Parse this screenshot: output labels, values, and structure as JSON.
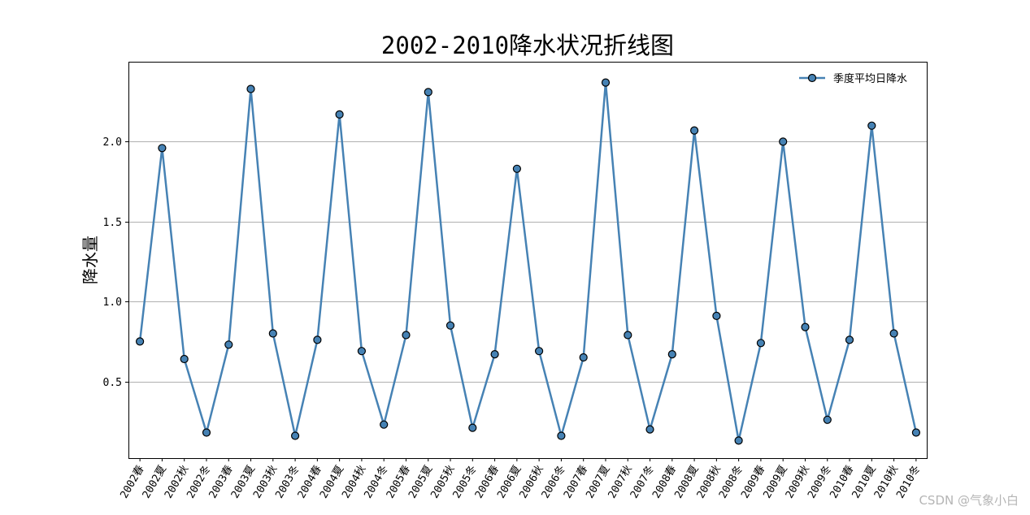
{
  "watermark": "CSDN @气象小白",
  "chart_data": {
    "type": "line",
    "title": "2002-2010降水状况折线图",
    "xlabel": "",
    "ylabel": "降水量",
    "categories": [
      "2002春",
      "2002夏",
      "2002秋",
      "2002冬",
      "2003春",
      "2003夏",
      "2003秋",
      "2003冬",
      "2004春",
      "2004夏",
      "2004秋",
      "2004冬",
      "2005春",
      "2005夏",
      "2005秋",
      "2005冬",
      "2006春",
      "2006夏",
      "2006秋",
      "2006冬",
      "2007春",
      "2007夏",
      "2007秋",
      "2007冬",
      "2008春",
      "2008夏",
      "2008秋",
      "2008冬",
      "2009春",
      "2009夏",
      "2009秋",
      "2009冬",
      "2010春",
      "2010夏",
      "2010秋",
      "2010冬"
    ],
    "series": [
      {
        "name": "季度平均日降水",
        "values": [
          0.75,
          1.96,
          0.64,
          0.18,
          0.73,
          2.33,
          0.8,
          0.16,
          0.76,
          2.17,
          0.69,
          0.23,
          0.79,
          2.31,
          0.85,
          0.21,
          0.67,
          1.83,
          0.69,
          0.16,
          0.65,
          2.37,
          0.79,
          0.2,
          0.67,
          2.07,
          0.91,
          0.13,
          0.74,
          2.0,
          0.84,
          0.26,
          0.76,
          2.1,
          0.8,
          0.18
        ],
        "color": "#4682b4"
      }
    ],
    "yticks": [
      "0.5",
      "1.0",
      "1.5",
      "2.0"
    ],
    "ylim": [
      0.02,
      2.5
    ],
    "grid": "y",
    "legend": "top-right"
  }
}
